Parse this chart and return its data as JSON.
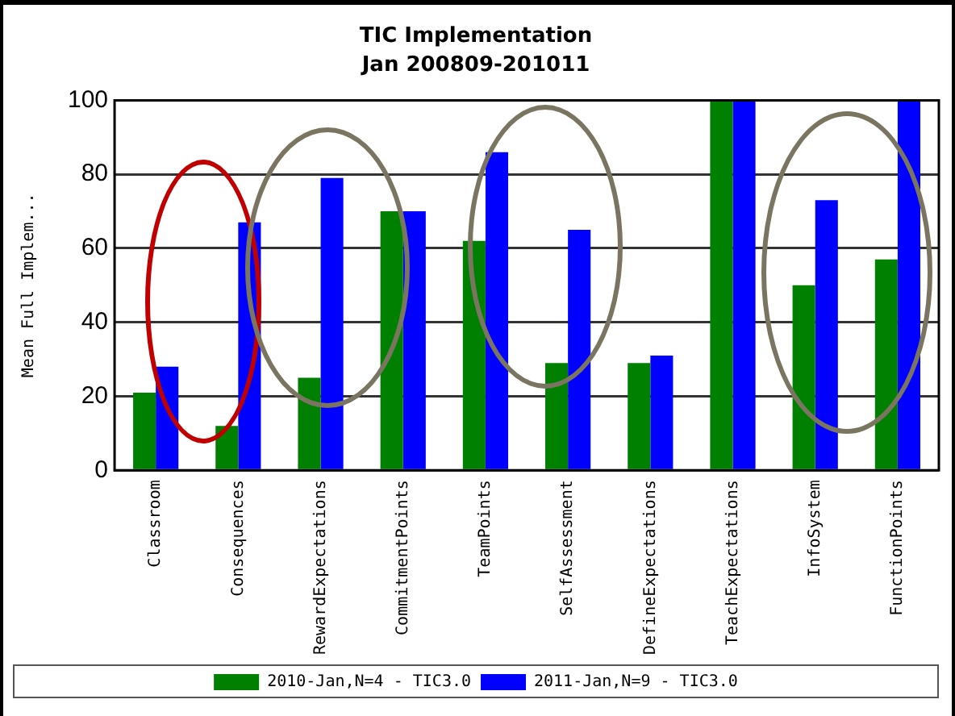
{
  "chart_data": {
    "type": "bar",
    "title": "TIC Implementation",
    "subtitle": "Jan 200809-201011",
    "ylabel": "Mean Full Implem...",
    "categories": [
      "Classroom",
      "Consequences",
      "RewardExpectations",
      "CommitmentPoints",
      "TeamPoints",
      "SelfAssessment",
      "DefineExpectations",
      "TeachExpectations",
      "InfoSystem",
      "FunctionPoints"
    ],
    "series": [
      {
        "name": "2010-Jan,N=4 - TIC3.0",
        "color": "#008000",
        "values": [
          21,
          12,
          25,
          70,
          62,
          29,
          29,
          100,
          50,
          57
        ]
      },
      {
        "name": "2011-Jan,N=9 - TIC3.0",
        "color": "#0000ff",
        "values": [
          28,
          67,
          79,
          70,
          86,
          65,
          31,
          100,
          73,
          100
        ]
      }
    ],
    "ylim": [
      0,
      100
    ],
    "yticks": [
      0,
      20,
      40,
      60,
      80,
      100
    ],
    "grid": "y",
    "legend": "bottom"
  }
}
